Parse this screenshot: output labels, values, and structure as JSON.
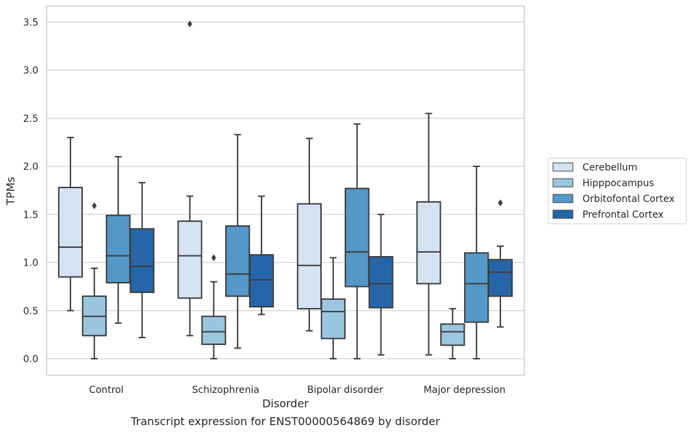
{
  "chart_data": {
    "type": "boxplot",
    "xlabel": "Disorder",
    "ylabel": "TPMs",
    "caption": "Transcript expression for ENST00000564869 by disorder",
    "ylim": [
      -0.17,
      3.66
    ],
    "yticks": [
      0.0,
      0.5,
      1.0,
      1.5,
      2.0,
      2.5,
      3.0,
      3.5
    ],
    "ytick_labels": [
      "0.0",
      "0.5",
      "1.0",
      "1.5",
      "2.0",
      "2.5",
      "3.0",
      "3.5"
    ],
    "grid": "horizontal",
    "legend_position": "right",
    "categories": [
      "Control",
      "Schizophrenia",
      "Bipolar disorder",
      "Major depression"
    ],
    "series": [
      {
        "name": "Cerebellum",
        "color": "#d4e3f1",
        "boxes": [
          {
            "whislo": 0.5,
            "q1": 0.85,
            "med": 1.16,
            "q3": 1.78,
            "whishi": 2.3,
            "fliers": []
          },
          {
            "whislo": 0.24,
            "q1": 0.63,
            "med": 1.07,
            "q3": 1.43,
            "whishi": 1.69,
            "fliers": [
              3.48
            ]
          },
          {
            "whislo": 0.29,
            "q1": 0.52,
            "med": 0.97,
            "q3": 1.61,
            "whishi": 2.29,
            "fliers": []
          },
          {
            "whislo": 0.04,
            "q1": 0.78,
            "med": 1.11,
            "q3": 1.63,
            "whishi": 2.55,
            "fliers": []
          }
        ]
      },
      {
        "name": "Hipppocampus",
        "color": "#9ac6e0",
        "boxes": [
          {
            "whislo": 0.0,
            "q1": 0.24,
            "med": 0.44,
            "q3": 0.65,
            "whishi": 0.94,
            "fliers": [
              1.59
            ]
          },
          {
            "whislo": 0.0,
            "q1": 0.15,
            "med": 0.28,
            "q3": 0.44,
            "whishi": 0.8,
            "fliers": [
              1.05
            ]
          },
          {
            "whislo": 0.0,
            "q1": 0.21,
            "med": 0.49,
            "q3": 0.62,
            "whishi": 1.05,
            "fliers": []
          },
          {
            "whislo": 0.0,
            "q1": 0.14,
            "med": 0.28,
            "q3": 0.36,
            "whishi": 0.52,
            "fliers": []
          }
        ]
      },
      {
        "name": "Orbitofontal Cortex",
        "color": "#5398c7",
        "boxes": [
          {
            "whislo": 0.37,
            "q1": 0.79,
            "med": 1.07,
            "q3": 1.49,
            "whishi": 2.1,
            "fliers": []
          },
          {
            "whislo": 0.11,
            "q1": 0.65,
            "med": 0.88,
            "q3": 1.38,
            "whishi": 2.33,
            "fliers": []
          },
          {
            "whislo": 0.0,
            "q1": 0.75,
            "med": 1.11,
            "q3": 1.77,
            "whishi": 2.44,
            "fliers": []
          },
          {
            "whislo": 0.0,
            "q1": 0.38,
            "med": 0.78,
            "q3": 1.1,
            "whishi": 2.0,
            "fliers": []
          }
        ]
      },
      {
        "name": "Prefrontal Cortex",
        "color": "#2666a8",
        "boxes": [
          {
            "whislo": 0.22,
            "q1": 0.69,
            "med": 0.96,
            "q3": 1.35,
            "whishi": 1.83,
            "fliers": []
          },
          {
            "whislo": 0.46,
            "q1": 0.54,
            "med": 0.82,
            "q3": 1.08,
            "whishi": 1.69,
            "fliers": []
          },
          {
            "whislo": 0.04,
            "q1": 0.53,
            "med": 0.78,
            "q3": 1.06,
            "whishi": 1.5,
            "fliers": []
          },
          {
            "whislo": 0.33,
            "q1": 0.65,
            "med": 0.9,
            "q3": 1.03,
            "whishi": 1.17,
            "fliers": [
              1.62
            ]
          }
        ]
      }
    ]
  }
}
